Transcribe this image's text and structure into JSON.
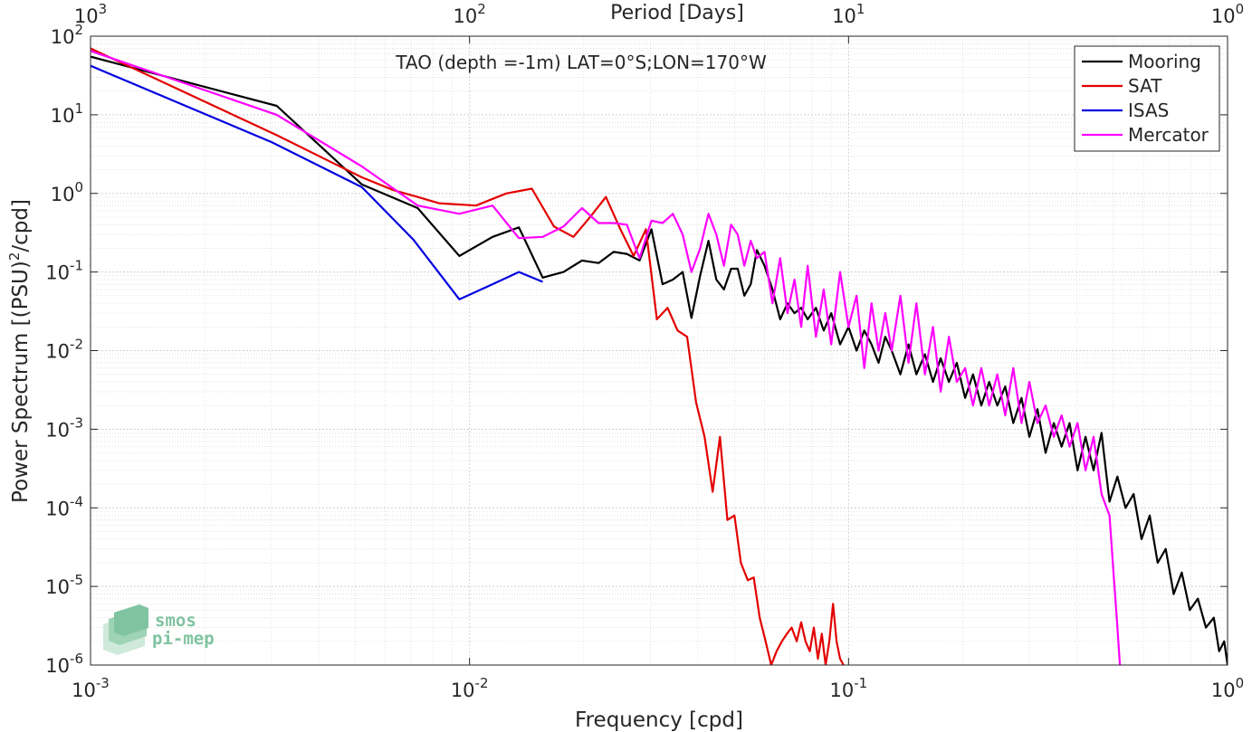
{
  "chart_data": {
    "type": "line",
    "title": "TAO (depth =-1m) LAT=0°S;LON=170°W",
    "xlabel": "Frequency [cpd]",
    "ylabel_main": "Power Spectrum [(PSU)",
    "ylabel_sup": "2",
    "ylabel_tail": "/cpd]",
    "top_label": "Period [Days]",
    "x_scale": "log",
    "y_scale": "log",
    "xlim": [
      0.001,
      1
    ],
    "ylim": [
      1e-06,
      100
    ],
    "grid": true,
    "legend_position": "top-right",
    "x_ticks": [
      {
        "value": 0.001,
        "base": "10",
        "exp": "-3"
      },
      {
        "value": 0.01,
        "base": "10",
        "exp": "-2"
      },
      {
        "value": 0.1,
        "base": "10",
        "exp": "-1"
      },
      {
        "value": 1,
        "base": "10",
        "exp": "0"
      }
    ],
    "y_ticks": [
      {
        "value": 1e-06,
        "base": "10",
        "exp": "-6"
      },
      {
        "value": 1e-05,
        "base": "10",
        "exp": "-5"
      },
      {
        "value": 0.0001,
        "base": "10",
        "exp": "-4"
      },
      {
        "value": 0.001,
        "base": "10",
        "exp": "-3"
      },
      {
        "value": 0.01,
        "base": "10",
        "exp": "-2"
      },
      {
        "value": 0.1,
        "base": "10",
        "exp": "-1"
      },
      {
        "value": 1,
        "base": "10",
        "exp": "0"
      },
      {
        "value": 10,
        "base": "10",
        "exp": "1"
      },
      {
        "value": 100,
        "base": "10",
        "exp": "2"
      }
    ],
    "top_ticks": [
      {
        "value": 0.001,
        "base": "10",
        "exp": "3"
      },
      {
        "value": 0.01,
        "base": "10",
        "exp": "2"
      },
      {
        "value": 0.1,
        "base": "10",
        "exp": "1"
      },
      {
        "value": 1,
        "base": "10",
        "exp": "0"
      }
    ],
    "series": [
      {
        "name": "Mooring",
        "color": "#000000",
        "points": [
          [
            0.001,
            55
          ],
          [
            0.0031,
            13
          ],
          [
            0.0052,
            1.3
          ],
          [
            0.0073,
            0.65
          ],
          [
            0.0094,
            0.16
          ],
          [
            0.0115,
            0.28
          ],
          [
            0.0135,
            0.37
          ],
          [
            0.0156,
            0.085
          ],
          [
            0.0177,
            0.1
          ],
          [
            0.0198,
            0.14
          ],
          [
            0.0219,
            0.13
          ],
          [
            0.024,
            0.18
          ],
          [
            0.026,
            0.17
          ],
          [
            0.0281,
            0.14
          ],
          [
            0.0302,
            0.35
          ],
          [
            0.0323,
            0.07
          ],
          [
            0.0344,
            0.08
          ],
          [
            0.0365,
            0.1
          ],
          [
            0.0385,
            0.026
          ],
          [
            0.0406,
            0.09
          ],
          [
            0.0427,
            0.25
          ],
          [
            0.0448,
            0.08
          ],
          [
            0.0469,
            0.06
          ],
          [
            0.049,
            0.11
          ],
          [
            0.051,
            0.11
          ],
          [
            0.0531,
            0.05
          ],
          [
            0.0552,
            0.07
          ],
          [
            0.0573,
            0.19
          ],
          [
            0.06,
            0.12
          ],
          [
            0.063,
            0.06
          ],
          [
            0.066,
            0.025
          ],
          [
            0.069,
            0.04
          ],
          [
            0.072,
            0.03
          ],
          [
            0.075,
            0.035
          ],
          [
            0.078,
            0.025
          ],
          [
            0.082,
            0.035
          ],
          [
            0.086,
            0.018
          ],
          [
            0.09,
            0.03
          ],
          [
            0.095,
            0.012
          ],
          [
            0.1,
            0.02
          ],
          [
            0.105,
            0.01
          ],
          [
            0.11,
            0.018
          ],
          [
            0.115,
            0.012
          ],
          [
            0.12,
            0.007
          ],
          [
            0.125,
            0.015
          ],
          [
            0.13,
            0.01
          ],
          [
            0.137,
            0.005
          ],
          [
            0.144,
            0.012
          ],
          [
            0.151,
            0.005
          ],
          [
            0.159,
            0.009
          ],
          [
            0.167,
            0.004
          ],
          [
            0.175,
            0.008
          ],
          [
            0.184,
            0.004
          ],
          [
            0.193,
            0.007
          ],
          [
            0.203,
            0.0025
          ],
          [
            0.213,
            0.005
          ],
          [
            0.224,
            0.002
          ],
          [
            0.235,
            0.004
          ],
          [
            0.247,
            0.002
          ],
          [
            0.259,
            0.0035
          ],
          [
            0.272,
            0.0012
          ],
          [
            0.286,
            0.0025
          ],
          [
            0.3,
            0.0008
          ],
          [
            0.315,
            0.0018
          ],
          [
            0.331,
            0.0005
          ],
          [
            0.348,
            0.0012
          ],
          [
            0.365,
            0.0006
          ],
          [
            0.383,
            0.0012
          ],
          [
            0.402,
            0.0003
          ],
          [
            0.422,
            0.0008
          ],
          [
            0.443,
            0.0003
          ],
          [
            0.465,
            0.0009
          ],
          [
            0.488,
            0.00012
          ],
          [
            0.512,
            0.00025
          ],
          [
            0.538,
            0.0001
          ],
          [
            0.565,
            0.00015
          ],
          [
            0.593,
            4e-05
          ],
          [
            0.623,
            8e-05
          ],
          [
            0.654,
            2e-05
          ],
          [
            0.687,
            3e-05
          ],
          [
            0.721,
            8e-06
          ],
          [
            0.757,
            1.5e-05
          ],
          [
            0.795,
            5e-06
          ],
          [
            0.835,
            7e-06
          ],
          [
            0.877,
            3e-06
          ],
          [
            0.92,
            4e-06
          ],
          [
            0.95,
            1.5e-06
          ],
          [
            0.98,
            2e-06
          ],
          [
            1.0,
            1e-06
          ]
        ]
      },
      {
        "name": "SAT",
        "color": "#e30000",
        "points": [
          [
            0.001,
            70
          ],
          [
            0.0031,
            5.5
          ],
          [
            0.0052,
            1.6
          ],
          [
            0.0063,
            1.1
          ],
          [
            0.0073,
            0.9
          ],
          [
            0.0083,
            0.75
          ],
          [
            0.0104,
            0.7
          ],
          [
            0.0125,
            1.0
          ],
          [
            0.0146,
            1.15
          ],
          [
            0.0167,
            0.38
          ],
          [
            0.0188,
            0.28
          ],
          [
            0.0208,
            0.5
          ],
          [
            0.0229,
            0.9
          ],
          [
            0.025,
            0.35
          ],
          [
            0.0271,
            0.16
          ],
          [
            0.0292,
            0.35
          ],
          [
            0.0312,
            0.025
          ],
          [
            0.0333,
            0.035
          ],
          [
            0.0354,
            0.018
          ],
          [
            0.0375,
            0.015
          ],
          [
            0.0396,
            0.0022
          ],
          [
            0.0417,
            0.0008
          ],
          [
            0.0438,
            0.00016
          ],
          [
            0.0458,
            0.0008
          ],
          [
            0.0479,
            7e-05
          ],
          [
            0.05,
            8e-05
          ],
          [
            0.052,
            2e-05
          ],
          [
            0.0542,
            1.2e-05
          ],
          [
            0.0562,
            1.3e-05
          ],
          [
            0.0583,
            4e-06
          ],
          [
            0.0604,
            2e-06
          ],
          [
            0.0625,
            1e-06
          ],
          [
            0.0646,
            1.5e-06
          ],
          [
            0.0667,
            2e-06
          ],
          [
            0.0688,
            2.5e-06
          ],
          [
            0.0708,
            3e-06
          ],
          [
            0.073,
            2e-06
          ],
          [
            0.075,
            3.5e-06
          ],
          [
            0.077,
            2e-06
          ],
          [
            0.079,
            1.5e-06
          ],
          [
            0.081,
            3e-06
          ],
          [
            0.083,
            1.2e-06
          ],
          [
            0.085,
            2.5e-06
          ],
          [
            0.087,
            1e-06
          ],
          [
            0.089,
            2e-06
          ],
          [
            0.091,
            6e-06
          ],
          [
            0.093,
            2e-06
          ],
          [
            0.095,
            1.2e-06
          ],
          [
            0.097,
            1e-06
          ]
        ]
      },
      {
        "name": "ISAS",
        "color": "#0000e0",
        "points": [
          [
            0.001,
            42
          ],
          [
            0.003,
            4.5
          ],
          [
            0.0052,
            1.2
          ],
          [
            0.0071,
            0.26
          ],
          [
            0.0094,
            0.045
          ],
          [
            0.0115,
            0.07
          ],
          [
            0.0135,
            0.1
          ],
          [
            0.0156,
            0.075
          ]
        ]
      },
      {
        "name": "Mercator",
        "color": "#ff00ff",
        "points": [
          [
            0.001,
            65
          ],
          [
            0.0031,
            10
          ],
          [
            0.0052,
            2.2
          ],
          [
            0.0073,
            0.7
          ],
          [
            0.0094,
            0.55
          ],
          [
            0.0115,
            0.7
          ],
          [
            0.0135,
            0.27
          ],
          [
            0.0156,
            0.28
          ],
          [
            0.0177,
            0.38
          ],
          [
            0.0198,
            0.65
          ],
          [
            0.0219,
            0.42
          ],
          [
            0.024,
            0.42
          ],
          [
            0.026,
            0.4
          ],
          [
            0.0281,
            0.15
          ],
          [
            0.0302,
            0.45
          ],
          [
            0.0323,
            0.42
          ],
          [
            0.0344,
            0.55
          ],
          [
            0.0365,
            0.3
          ],
          [
            0.0385,
            0.1
          ],
          [
            0.0406,
            0.2
          ],
          [
            0.0427,
            0.55
          ],
          [
            0.0448,
            0.3
          ],
          [
            0.0469,
            0.12
          ],
          [
            0.049,
            0.4
          ],
          [
            0.051,
            0.3
          ],
          [
            0.0531,
            0.12
          ],
          [
            0.0552,
            0.25
          ],
          [
            0.0573,
            0.15
          ],
          [
            0.06,
            0.18
          ],
          [
            0.063,
            0.04
          ],
          [
            0.066,
            0.15
          ],
          [
            0.069,
            0.03
          ],
          [
            0.072,
            0.08
          ],
          [
            0.075,
            0.02
          ],
          [
            0.078,
            0.12
          ],
          [
            0.082,
            0.015
          ],
          [
            0.086,
            0.06
          ],
          [
            0.09,
            0.012
          ],
          [
            0.095,
            0.1
          ],
          [
            0.1,
            0.02
          ],
          [
            0.105,
            0.05
          ],
          [
            0.11,
            0.006
          ],
          [
            0.115,
            0.04
          ],
          [
            0.12,
            0.01
          ],
          [
            0.125,
            0.03
          ],
          [
            0.13,
            0.01
          ],
          [
            0.137,
            0.05
          ],
          [
            0.144,
            0.007
          ],
          [
            0.151,
            0.04
          ],
          [
            0.159,
            0.005
          ],
          [
            0.167,
            0.02
          ],
          [
            0.175,
            0.003
          ],
          [
            0.184,
            0.015
          ],
          [
            0.193,
            0.004
          ],
          [
            0.203,
            0.006
          ],
          [
            0.213,
            0.002
          ],
          [
            0.224,
            0.006
          ],
          [
            0.235,
            0.002
          ],
          [
            0.247,
            0.005
          ],
          [
            0.259,
            0.0015
          ],
          [
            0.272,
            0.006
          ],
          [
            0.286,
            0.0012
          ],
          [
            0.3,
            0.004
          ],
          [
            0.315,
            0.0012
          ],
          [
            0.331,
            0.002
          ],
          [
            0.348,
            0.0008
          ],
          [
            0.365,
            0.0015
          ],
          [
            0.383,
            0.0006
          ],
          [
            0.402,
            0.0012
          ],
          [
            0.422,
            0.0003
          ],
          [
            0.443,
            0.0008
          ],
          [
            0.465,
            0.00015
          ],
          [
            0.488,
            8e-05
          ],
          [
            0.5,
            1.5e-05
          ],
          [
            0.51,
            4e-06
          ],
          [
            0.52,
            1e-06
          ]
        ]
      }
    ]
  },
  "watermark": {
    "line1": "smos",
    "line2": "pi-mep",
    "color": "#7fc3a0"
  }
}
